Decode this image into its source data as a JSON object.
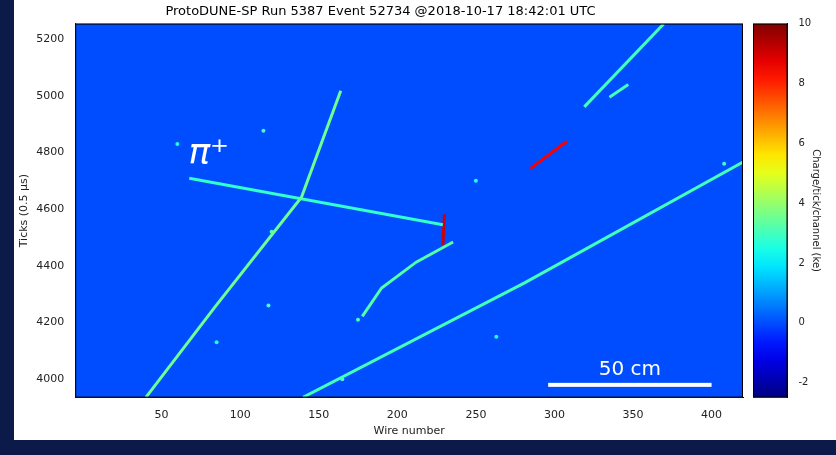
{
  "chart_data": {
    "type": "scatter",
    "title": "ProtoDUNE-SP Run 5387 Event 52734 @2018-10-17 18:42:01 UTC",
    "x_label": "Wire number",
    "y_label": "Ticks (0.5 µs)",
    "xlim": [
      -5,
      420
    ],
    "xticks": [
      50,
      100,
      150,
      200,
      250,
      300,
      350,
      400
    ],
    "ylim": [
      3935,
      5255
    ],
    "yticks": [
      4000,
      4200,
      4400,
      4600,
      4800,
      5000,
      5200
    ],
    "grid": false,
    "colorbar": {
      "label": "Charge/tick/channel (ke)",
      "range": [
        -2.5,
        10
      ],
      "ticks": [
        -2,
        0,
        2,
        4,
        6,
        8,
        10
      ],
      "ground_charge": 0
    },
    "series": [
      {
        "type": "line",
        "x": [
          40,
          84,
          139,
          164
        ],
        "y": [
          3936,
          4255,
          4642,
          5018
        ],
        "charge": 3.5
      },
      {
        "type": "line",
        "x": [
          67.6,
          229
        ],
        "y": [
          4709,
          4545
        ],
        "charge": 2.8
      },
      {
        "type": "line",
        "x": [
          230,
          229
        ],
        "y": [
          4582,
          4474
        ],
        "charge": 9
      },
      {
        "type": "line",
        "x": [
          140,
          281,
          420
        ],
        "y": [
          3936,
          4340,
          4766
        ],
        "charge": 3
      },
      {
        "type": "line",
        "x": [
          284.6,
          307.9
        ],
        "y": [
          4743,
          4840
        ],
        "charge": 8.5
      },
      {
        "type": "line",
        "x": [
          319,
          369.5
        ],
        "y": [
          4961,
          5254
        ],
        "charge": 3
      },
      {
        "type": "line",
        "x": [
          335,
          347
        ],
        "y": [
          4995,
          5040
        ],
        "charge": 3
      },
      {
        "type": "line",
        "x": [
          177.7,
          190,
          212,
          235.5
        ],
        "y": [
          4222,
          4322,
          4413,
          4484
        ],
        "charge": 3.2
      },
      {
        "type": "scatter",
        "x": [
          114.8,
          60,
          120,
          118,
          165,
          263,
          85,
          175,
          408,
          250
        ],
        "y": [
          4877,
          4830,
          4520,
          4260,
          4000,
          4150,
          4130,
          4210,
          4760,
          4700
        ],
        "charge": [
          3,
          2.5,
          3,
          3,
          3,
          2.5,
          2.5,
          3,
          3,
          2.5
        ]
      }
    ],
    "annotations": [
      {
        "text": "π⁺",
        "x": 80,
        "y": 4793
      }
    ],
    "scale_bar": {
      "label": "50 cm",
      "x": [
        296,
        400
      ],
      "y": 3980
    }
  }
}
